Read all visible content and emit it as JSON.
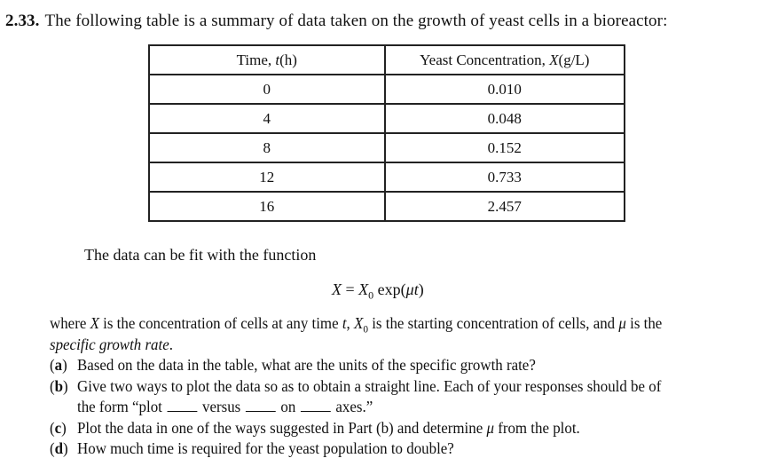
{
  "problem": {
    "number": "2.33.",
    "intro": "The following table is a summary of data taken on the growth of yeast cells in a bioreactor:"
  },
  "table": {
    "headers": {
      "time_prefix": "Time, ",
      "time_var": "t",
      "time_unit": "(h)",
      "conc_prefix": "Yeast Concentration, ",
      "conc_var": "X",
      "conc_unit": "(g/L)"
    },
    "rows": [
      {
        "time": "0",
        "conc": "0.010"
      },
      {
        "time": "4",
        "conc": "0.048"
      },
      {
        "time": "8",
        "conc": "0.152"
      },
      {
        "time": "12",
        "conc": "0.733"
      },
      {
        "time": "16",
        "conc": "2.457"
      }
    ]
  },
  "fit_intro": "The data can be fit with the function",
  "equation": {
    "lhs": "X",
    "equals": " = ",
    "x0_base": "X",
    "x0_sub": "0",
    "exp_func": " exp(",
    "mu": "μ",
    "t": "t",
    "close": ")"
  },
  "description": {
    "p1": "where ",
    "X": "X",
    "p2": " is the concentration of cells at any time ",
    "t": "t",
    "p3": ", ",
    "X0_base": "X",
    "X0_sub": "0",
    "p4": " is the starting concentration of cells, and ",
    "mu": "μ",
    "p5": " is the",
    "term": "specific growth rate",
    "end": "."
  },
  "questions": {
    "a": {
      "label": "a",
      "text": "Based on the data in the table, what are the units of the specific growth rate?"
    },
    "b": {
      "label": "b",
      "text": "Give two ways to plot the data so as to obtain a straight line. Each of your responses should be of",
      "cont_1": "the form “plot",
      "cont_2": "versus",
      "cont_3": "on",
      "cont_4": "axes.”"
    },
    "c": {
      "label": "c",
      "text_1": "Plot the data in one of the ways suggested in Part (b) and determine ",
      "mu": "μ",
      "text_2": " from the plot."
    },
    "d": {
      "label": "d",
      "text": "How much time is required for the yeast population to double?"
    }
  }
}
